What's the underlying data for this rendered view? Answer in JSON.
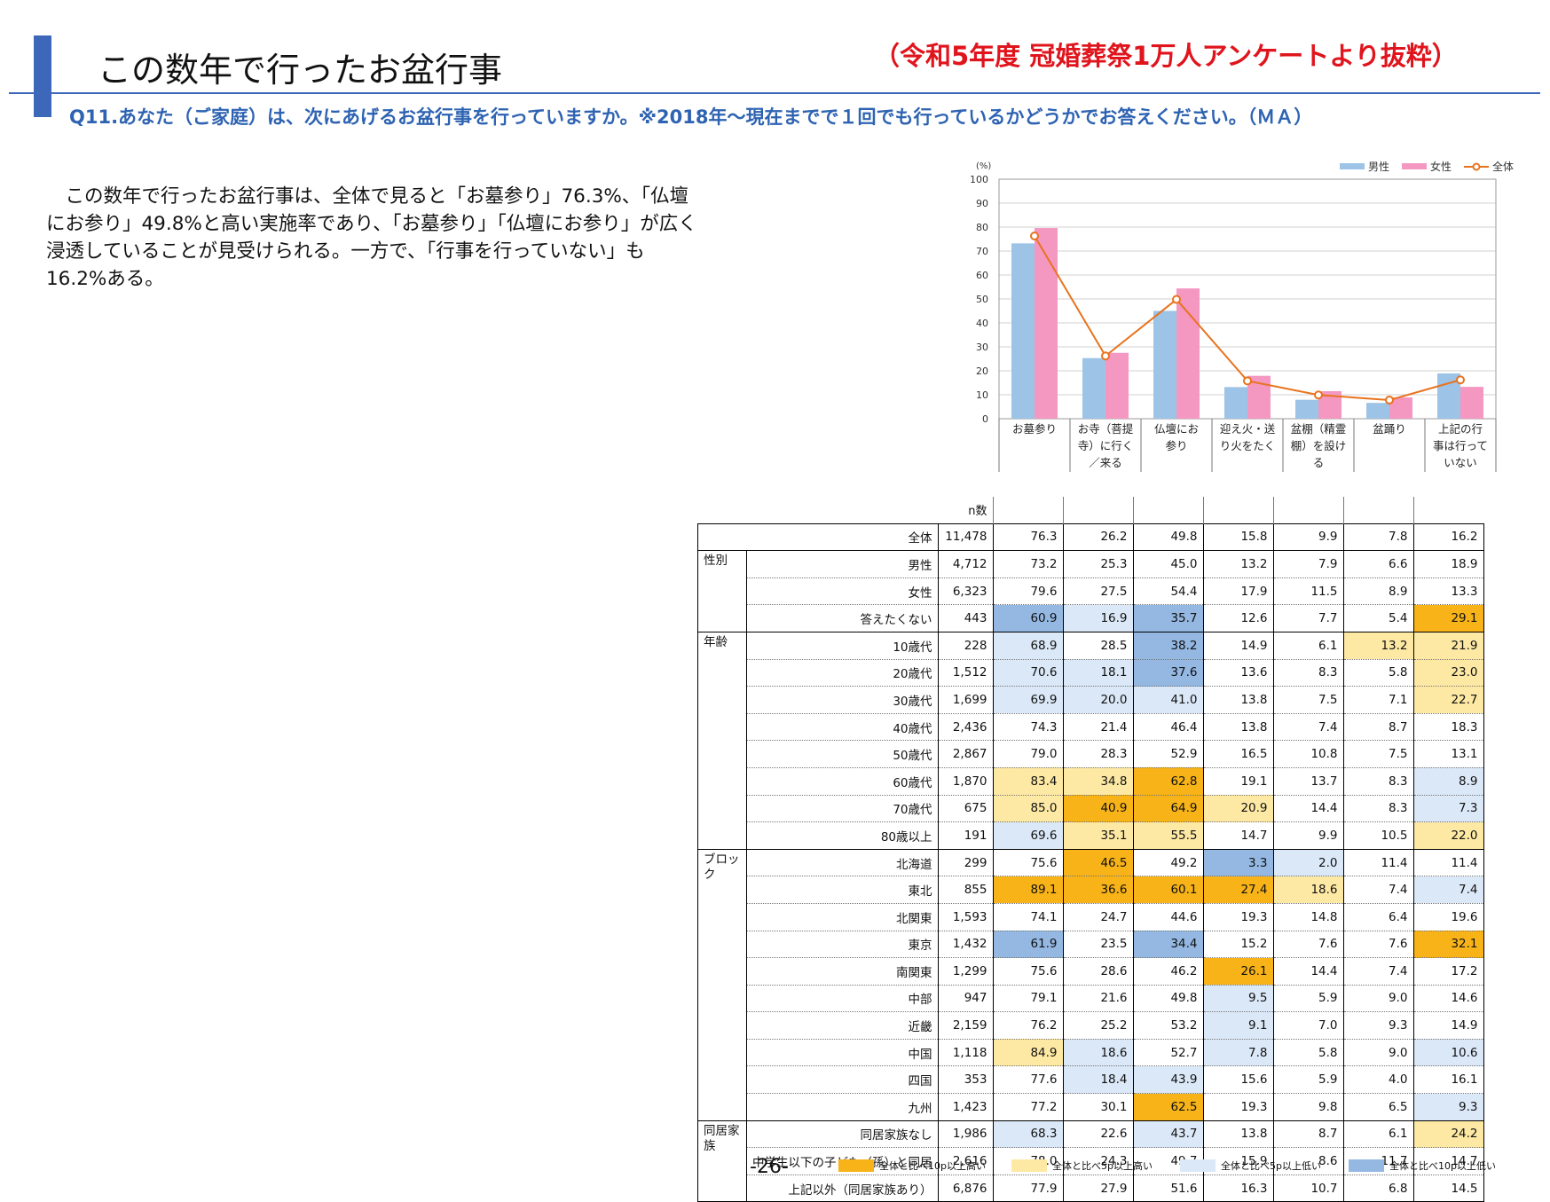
{
  "header": {
    "title": "この数年で行ったお盆行事",
    "subtitle": "（令和5年度 冠婚葬祭1万人アンケートより抜粋）",
    "question": "Q11.あなた（ご家庭）は、次にあげるお盆行事を行っていますか。※2018年～現在までで１回でも行っているかどうかでお答えください。（ＭＡ）"
  },
  "body_text": "　この数年で行ったお盆行事は、全体で見ると「お墓参り」76.3%、「仏壇にお参り」49.8%と高い実施率であり、「お墓参り」「仏壇にお参り」が広く浸透していることが見受けられる。一方で、「行事を行っていない」も16.2%ある。",
  "page_number": "-26-",
  "chart_data": {
    "type": "bar",
    "unit_label": "(%)",
    "ylim": [
      0,
      100
    ],
    "yticks": [
      "0",
      "10",
      "20",
      "30",
      "40",
      "50",
      "60",
      "70",
      "80",
      "90",
      "100"
    ],
    "categories": [
      "お墓参り",
      "お寺（菩提寺）に行く／来る",
      "仏壇にお参り",
      "迎え火・送り火をたく",
      "盆棚（精霊棚）を設ける",
      "盆踊り",
      "上記の行事は行っていない"
    ],
    "category_lines": [
      [
        "お墓参り"
      ],
      [
        "お寺（菩提",
        "寺）に行く",
        "／来る"
      ],
      [
        "仏壇にお",
        "参り"
      ],
      [
        "迎え火・送",
        "り火をたく"
      ],
      [
        "盆棚（精霊",
        "棚）を設け",
        "る"
      ],
      [
        "盆踊り"
      ],
      [
        "上記の行",
        "事は行って",
        "いない"
      ]
    ],
    "series": [
      {
        "name": "男性",
        "kind": "bar",
        "color": "#9dc3e6",
        "values": [
          73.2,
          25.3,
          45.0,
          13.2,
          7.9,
          6.6,
          18.9
        ]
      },
      {
        "name": "女性",
        "kind": "bar",
        "color": "#f497c1",
        "values": [
          79.6,
          27.5,
          54.4,
          17.9,
          11.5,
          8.9,
          13.3
        ]
      },
      {
        "name": "全体",
        "kind": "line",
        "color": "#e8731e",
        "values": [
          76.3,
          26.2,
          49.8,
          15.8,
          9.9,
          7.8,
          16.2
        ]
      }
    ],
    "grid": true,
    "legend_position": "top-right"
  },
  "table": {
    "n_header": "n数",
    "rows": [
      {
        "group": "",
        "label": "全体",
        "n": "11,478",
        "values": [
          "76.3",
          "26.2",
          "49.8",
          "15.8",
          "9.9",
          "7.8",
          "16.2"
        ],
        "hl": [
          "",
          "",
          "",
          "",
          "",
          "",
          ""
        ]
      },
      {
        "group": "性別",
        "label": "男性",
        "n": "4,712",
        "values": [
          "73.2",
          "25.3",
          "45.0",
          "13.2",
          "7.9",
          "6.6",
          "18.9"
        ],
        "hl": [
          "",
          "",
          "",
          "",
          "",
          "",
          ""
        ]
      },
      {
        "group": "",
        "label": "女性",
        "n": "6,323",
        "values": [
          "79.6",
          "27.5",
          "54.4",
          "17.9",
          "11.5",
          "8.9",
          "13.3"
        ],
        "hl": [
          "",
          "",
          "",
          "",
          "",
          "",
          ""
        ]
      },
      {
        "group": "",
        "label": "答えたくない",
        "n": "443",
        "values": [
          "60.9",
          "16.9",
          "35.7",
          "12.6",
          "7.7",
          "5.4",
          "29.1"
        ],
        "hl": [
          "db",
          "lb",
          "db",
          "",
          "",
          "",
          "or"
        ]
      },
      {
        "group": "年齢",
        "label": "10歳代",
        "n": "228",
        "values": [
          "68.9",
          "28.5",
          "38.2",
          "14.9",
          "6.1",
          "13.2",
          "21.9"
        ],
        "hl": [
          "lb",
          "",
          "db",
          "",
          "",
          "ly",
          "ly"
        ]
      },
      {
        "group": "",
        "label": "20歳代",
        "n": "1,512",
        "values": [
          "70.6",
          "18.1",
          "37.6",
          "13.6",
          "8.3",
          "5.8",
          "23.0"
        ],
        "hl": [
          "lb",
          "lb",
          "db",
          "",
          "",
          "",
          "ly"
        ]
      },
      {
        "group": "",
        "label": "30歳代",
        "n": "1,699",
        "values": [
          "69.9",
          "20.0",
          "41.0",
          "13.8",
          "7.5",
          "7.1",
          "22.7"
        ],
        "hl": [
          "lb",
          "lb",
          "lb",
          "",
          "",
          "",
          "ly"
        ]
      },
      {
        "group": "",
        "label": "40歳代",
        "n": "2,436",
        "values": [
          "74.3",
          "21.4",
          "46.4",
          "13.8",
          "7.4",
          "8.7",
          "18.3"
        ],
        "hl": [
          "",
          "",
          "",
          "",
          "",
          "",
          ""
        ]
      },
      {
        "group": "",
        "label": "50歳代",
        "n": "2,867",
        "values": [
          "79.0",
          "28.3",
          "52.9",
          "16.5",
          "10.8",
          "7.5",
          "13.1"
        ],
        "hl": [
          "",
          "",
          "",
          "",
          "",
          "",
          ""
        ]
      },
      {
        "group": "",
        "label": "60歳代",
        "n": "1,870",
        "values": [
          "83.4",
          "34.8",
          "62.8",
          "19.1",
          "13.7",
          "8.3",
          "8.9"
        ],
        "hl": [
          "ly",
          "ly",
          "or",
          "",
          "",
          "",
          "lb"
        ]
      },
      {
        "group": "",
        "label": "70歳代",
        "n": "675",
        "values": [
          "85.0",
          "40.9",
          "64.9",
          "20.9",
          "14.4",
          "8.3",
          "7.3"
        ],
        "hl": [
          "ly",
          "or",
          "or",
          "ly",
          "",
          "",
          "lb"
        ]
      },
      {
        "group": "",
        "label": "80歳以上",
        "n": "191",
        "values": [
          "69.6",
          "35.1",
          "55.5",
          "14.7",
          "9.9",
          "10.5",
          "22.0"
        ],
        "hl": [
          "lb",
          "ly",
          "ly",
          "",
          "",
          "",
          "ly"
        ]
      },
      {
        "group": "ブロック",
        "label": "北海道",
        "n": "299",
        "values": [
          "75.6",
          "46.5",
          "49.2",
          "3.3",
          "2.0",
          "11.4",
          "11.4"
        ],
        "hl": [
          "",
          "or",
          "",
          "db",
          "lb",
          "",
          ""
        ]
      },
      {
        "group": "",
        "label": "東北",
        "n": "855",
        "values": [
          "89.1",
          "36.6",
          "60.1",
          "27.4",
          "18.6",
          "7.4",
          "7.4"
        ],
        "hl": [
          "or",
          "or",
          "or",
          "or",
          "ly",
          "",
          "lb"
        ]
      },
      {
        "group": "",
        "label": "北関東",
        "n": "1,593",
        "values": [
          "74.1",
          "24.7",
          "44.6",
          "19.3",
          "14.8",
          "6.4",
          "19.6"
        ],
        "hl": [
          "",
          "",
          "",
          "",
          "",
          "",
          ""
        ]
      },
      {
        "group": "",
        "label": "東京",
        "n": "1,432",
        "values": [
          "61.9",
          "23.5",
          "34.4",
          "15.2",
          "7.6",
          "7.6",
          "32.1"
        ],
        "hl": [
          "db",
          "",
          "db",
          "",
          "",
          "",
          "or"
        ]
      },
      {
        "group": "",
        "label": "南関東",
        "n": "1,299",
        "values": [
          "75.6",
          "28.6",
          "46.2",
          "26.1",
          "14.4",
          "7.4",
          "17.2"
        ],
        "hl": [
          "",
          "",
          "",
          "or",
          "",
          "",
          ""
        ]
      },
      {
        "group": "",
        "label": "中部",
        "n": "947",
        "values": [
          "79.1",
          "21.6",
          "49.8",
          "9.5",
          "5.9",
          "9.0",
          "14.6"
        ],
        "hl": [
          "",
          "",
          "",
          "lb",
          "",
          "",
          ""
        ]
      },
      {
        "group": "",
        "label": "近畿",
        "n": "2,159",
        "values": [
          "76.2",
          "25.2",
          "53.2",
          "9.1",
          "7.0",
          "9.3",
          "14.9"
        ],
        "hl": [
          "",
          "",
          "",
          "lb",
          "",
          "",
          ""
        ]
      },
      {
        "group": "",
        "label": "中国",
        "n": "1,118",
        "values": [
          "84.9",
          "18.6",
          "52.7",
          "7.8",
          "5.8",
          "9.0",
          "10.6"
        ],
        "hl": [
          "ly",
          "lb",
          "",
          "lb",
          "",
          "",
          "lb"
        ]
      },
      {
        "group": "",
        "label": "四国",
        "n": "353",
        "values": [
          "77.6",
          "18.4",
          "43.9",
          "15.6",
          "5.9",
          "4.0",
          "16.1"
        ],
        "hl": [
          "",
          "lb",
          "lb",
          "",
          "",
          "",
          ""
        ]
      },
      {
        "group": "",
        "label": "九州",
        "n": "1,423",
        "values": [
          "77.2",
          "30.1",
          "62.5",
          "19.3",
          "9.8",
          "6.5",
          "9.3"
        ],
        "hl": [
          "",
          "",
          "or",
          "",
          "",
          "",
          "lb"
        ]
      },
      {
        "group": "同居家族",
        "label": "同居家族なし",
        "n": "1,986",
        "values": [
          "68.3",
          "22.6",
          "43.7",
          "13.8",
          "8.7",
          "6.1",
          "24.2"
        ],
        "hl": [
          "lb",
          "",
          "lb",
          "",
          "",
          "",
          "ly"
        ]
      },
      {
        "group": "",
        "label": "中学生以下の子ども（孫）と同居",
        "n": "2,616",
        "values": [
          "78.0",
          "24.3",
          "49.7",
          "15.9",
          "8.6",
          "11.7",
          "14.7"
        ],
        "hl": [
          "",
          "",
          "",
          "",
          "",
          "",
          ""
        ]
      },
      {
        "group": "",
        "label": "上記以外（同居家族あり）",
        "n": "6,876",
        "values": [
          "77.9",
          "27.9",
          "51.6",
          "16.3",
          "10.7",
          "6.8",
          "14.5"
        ],
        "hl": [
          "",
          "",
          "",
          "",
          "",
          "",
          ""
        ]
      }
    ],
    "legend": [
      {
        "label": "全体と比べ10p以上高い",
        "color": "#f7b318"
      },
      {
        "label": "全体と比べ5p以上高い",
        "color": "#fde9a4"
      },
      {
        "label": "全体と比べ5p以上低い",
        "color": "#dbe8f7"
      },
      {
        "label": "全体と比べ10p以上低い",
        "color": "#94b8e2"
      }
    ]
  }
}
